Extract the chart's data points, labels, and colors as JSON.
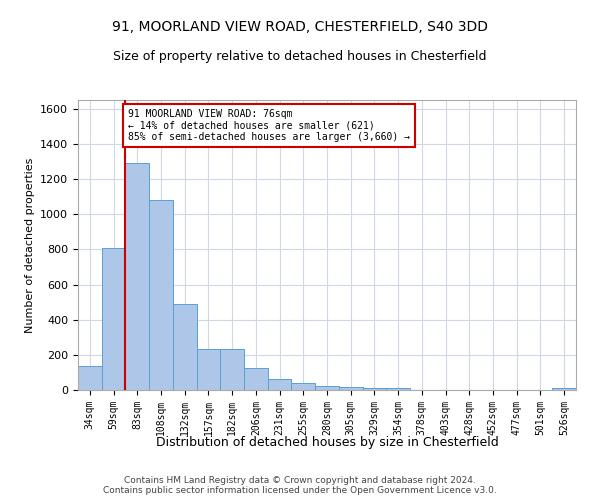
{
  "title_line1": "91, MOORLAND VIEW ROAD, CHESTERFIELD, S40 3DD",
  "title_line2": "Size of property relative to detached houses in Chesterfield",
  "xlabel": "Distribution of detached houses by size in Chesterfield",
  "ylabel": "Number of detached properties",
  "footer_line1": "Contains HM Land Registry data © Crown copyright and database right 2024.",
  "footer_line2": "Contains public sector information licensed under the Open Government Licence v3.0.",
  "bin_labels": [
    "34sqm",
    "59sqm",
    "83sqm",
    "108sqm",
    "132sqm",
    "157sqm",
    "182sqm",
    "206sqm",
    "231sqm",
    "255sqm",
    "280sqm",
    "305sqm",
    "329sqm",
    "354sqm",
    "378sqm",
    "403sqm",
    "428sqm",
    "452sqm",
    "477sqm",
    "501sqm",
    "526sqm"
  ],
  "bar_values": [
    135,
    810,
    1290,
    1080,
    490,
    235,
    235,
    125,
    65,
    38,
    25,
    15,
    13,
    13,
    0,
    0,
    0,
    0,
    0,
    0,
    13
  ],
  "bar_color": "#aec6e8",
  "bar_edge_color": "#5a9fd4",
  "grid_color": "#d0d8e8",
  "vline_color": "#cc0000",
  "annotation_text": "91 MOORLAND VIEW ROAD: 76sqm\n← 14% of detached houses are smaller (621)\n85% of semi-detached houses are larger (3,660) →",
  "annotation_box_color": "#ffffff",
  "annotation_box_edge": "#cc0000",
  "ylim": [
    0,
    1650
  ],
  "yticks": [
    0,
    200,
    400,
    600,
    800,
    1000,
    1200,
    1400,
    1600
  ],
  "background_color": "#ffffff",
  "title_fontsize": 10,
  "subtitle_fontsize": 9
}
